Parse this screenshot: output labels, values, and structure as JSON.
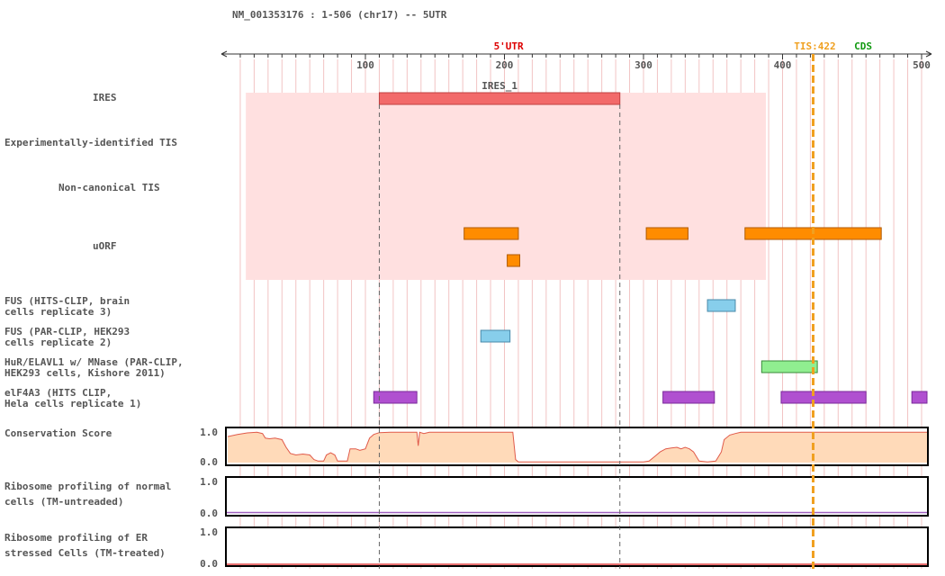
{
  "header": {
    "title": "NM_001353176 : 1-506 (chr17) -- 5UTR"
  },
  "tracks": {
    "ires": "IRES",
    "exp_tis": "Experimentally-identified TIS",
    "noncanon_tis": "Non-canonical TIS",
    "uorf": "uORF",
    "fus_brain": "FUS (HITS-CLIP, brain\ncells replicate 3)",
    "fus_hek": "FUS (PAR-CLIP, HEK293\ncells replicate 2)",
    "hur": "HuR/ELAVL1 w/ MNase (PAR-CLIP,\nHEK293 cells, Kishore 2011)",
    "eif4a3": "elF4A3 (HITS CLIP,\nHela cells replicate 1)",
    "conservation": "Conservation Score",
    "ribo_normal": "Ribosome profiling of normal\ncells (TM-untreaded)",
    "ribo_er": "Ribosome profiling of ER\nstressed Cells (TM-treated)"
  },
  "chart_data": {
    "type": "genome-track",
    "transcript": "NM_001353176",
    "range": [
      1,
      506
    ],
    "chromosome": "chr17",
    "region_label": "5'UTR",
    "cds_label": "CDS",
    "tis": {
      "label": "TIS:422",
      "position": 422
    },
    "axis_ticks": [
      100,
      200,
      300,
      400,
      500
    ],
    "ires_region": {
      "name": "IRES_1",
      "start": 110,
      "end": 283
    },
    "utr_shade": {
      "start": 14,
      "end": 388
    },
    "uorfs": [
      {
        "start": 171,
        "end": 210
      },
      {
        "start": 202,
        "end": 211
      },
      {
        "start": 302,
        "end": 332
      },
      {
        "start": 373,
        "end": 471
      }
    ],
    "fus_brain": [
      {
        "start": 346,
        "end": 366
      }
    ],
    "fus_hek": [
      {
        "start": 183,
        "end": 204
      }
    ],
    "hur": [
      {
        "start": 385,
        "end": 425
      }
    ],
    "eif4a3": [
      {
        "start": 106,
        "end": 137
      },
      {
        "start": 314,
        "end": 351
      },
      {
        "start": 399,
        "end": 460
      },
      {
        "start": 493,
        "end": 511
      }
    ],
    "conservation": {
      "ylim": [
        0,
        1
      ],
      "yticks": [
        "1.0",
        "0.0"
      ],
      "points": [
        [
          1,
          0.85
        ],
        [
          8,
          0.92
        ],
        [
          15,
          0.97
        ],
        [
          22,
          0.99
        ],
        [
          26,
          0.95
        ],
        [
          28,
          0.8
        ],
        [
          31,
          0.78
        ],
        [
          35,
          0.8
        ],
        [
          40,
          0.75
        ],
        [
          43,
          0.5
        ],
        [
          46,
          0.3
        ],
        [
          50,
          0.25
        ],
        [
          55,
          0.28
        ],
        [
          60,
          0.25
        ],
        [
          63,
          0.1
        ],
        [
          66,
          0.05
        ],
        [
          70,
          0.05
        ],
        [
          72,
          0.25
        ],
        [
          75,
          0.32
        ],
        [
          78,
          0.25
        ],
        [
          80,
          0.05
        ],
        [
          87,
          0.05
        ],
        [
          89,
          0.45
        ],
        [
          93,
          0.45
        ],
        [
          96,
          0.4
        ],
        [
          100,
          0.45
        ],
        [
          103,
          0.8
        ],
        [
          106,
          0.92
        ],
        [
          110,
          0.98
        ],
        [
          118,
          0.99
        ],
        [
          137,
          0.99
        ],
        [
          138,
          0.55
        ],
        [
          139,
          0.99
        ],
        [
          142,
          0.95
        ],
        [
          146,
          0.99
        ],
        [
          190,
          0.99
        ],
        [
          206,
          0.99
        ],
        [
          208,
          0.1
        ],
        [
          210,
          0.02
        ],
        [
          300,
          0.02
        ],
        [
          304,
          0.05
        ],
        [
          308,
          0.2
        ],
        [
          312,
          0.35
        ],
        [
          316,
          0.45
        ],
        [
          320,
          0.48
        ],
        [
          324,
          0.5
        ],
        [
          327,
          0.45
        ],
        [
          330,
          0.5
        ],
        [
          333,
          0.45
        ],
        [
          336,
          0.35
        ],
        [
          340,
          0.05
        ],
        [
          346,
          0.02
        ],
        [
          352,
          0.05
        ],
        [
          356,
          0.35
        ],
        [
          358,
          0.75
        ],
        [
          362,
          0.9
        ],
        [
          366,
          0.95
        ],
        [
          370,
          0.99
        ],
        [
          420,
          0.99
        ],
        [
          506,
          0.99
        ]
      ]
    },
    "ribo_normal": {
      "ylim": [
        0,
        1
      ],
      "yticks": [
        "1.0",
        "0.0"
      ],
      "level": 0.04
    },
    "ribo_er": {
      "ylim": [
        0,
        1
      ],
      "yticks": [
        "1.0",
        "0.0"
      ],
      "level": 0.0
    }
  }
}
